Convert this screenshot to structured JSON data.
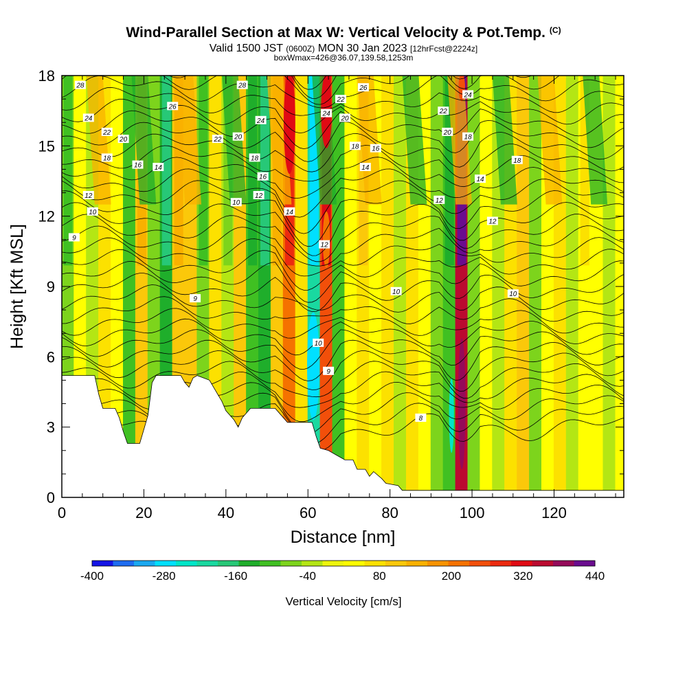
{
  "chart_data": {
    "type": "heatmap",
    "title": "Wind-Parallel Section at Max W: Vertical Velocity & Pot.Temp.",
    "title_mark": "(C)",
    "subtitle_parts": [
      "Valid 1500 JST",
      "(0600Z)",
      "MON 30 Jan 2023",
      "[12hrFcst@2224z]"
    ],
    "subtitle2": "boxWmax=426@36.07,139.58,1253m",
    "xlabel": "Distance [nm]",
    "ylabel": "Height [Kft MSL]",
    "xlim": [
      0,
      137
    ],
    "ylim": [
      0,
      18
    ],
    "x_ticks": [
      0,
      20,
      40,
      60,
      80,
      100,
      120
    ],
    "y_ticks": [
      0,
      3,
      6,
      9,
      12,
      15,
      18
    ],
    "grid": false,
    "colorbar": {
      "title": "Vertical Velocity [cm/s]",
      "tick_labels": [
        "-400",
        "-280",
        "-160",
        "-40",
        "80",
        "200",
        "320",
        "440"
      ],
      "min": -400,
      "max": 440,
      "colors": [
        "#1414e6",
        "#1e6cf0",
        "#1aa8f0",
        "#00e0ff",
        "#00e6c8",
        "#19d9a0",
        "#27c877",
        "#1fae2b",
        "#40c022",
        "#7dd41c",
        "#b4e614",
        "#eef50c",
        "#ffff00",
        "#fce100",
        "#fbc80a",
        "#f9b100",
        "#f79300",
        "#f57200",
        "#f24f0a",
        "#ec2a0f",
        "#e00a14",
        "#bb0a30",
        "#950a5a",
        "#6a0c8f"
      ]
    },
    "field_series": [
      {
        "x": 1.5,
        "w": -70
      },
      {
        "x": 4.5,
        "w": 40
      },
      {
        "x": 7.5,
        "w": -40
      },
      {
        "x": 10.5,
        "w": 60
      },
      {
        "x": 13.5,
        "w": 40
      },
      {
        "x": 16.5,
        "w": -90
      },
      {
        "x": 19.5,
        "w": 100
      },
      {
        "x": 22.5,
        "w": -60
      },
      {
        "x": 25.5,
        "w": -140
      },
      {
        "x": 28.5,
        "w": 120
      },
      {
        "x": 31.5,
        "w": 90
      },
      {
        "x": 34.5,
        "w": -70
      },
      {
        "x": 37.5,
        "w": 60
      },
      {
        "x": 40.5,
        "w": -50
      },
      {
        "x": 43.5,
        "w": 90
      },
      {
        "x": 46.5,
        "w": -120
      },
      {
        "x": 49.5,
        "w": -130
      },
      {
        "x": 52.5,
        "w": 110
      },
      {
        "x": 55.5,
        "w": 220
      },
      {
        "x": 58.5,
        "w": 60
      },
      {
        "x": 61.5,
        "w": -220
      },
      {
        "x": 64.5,
        "w": 240
      },
      {
        "x": 67.5,
        "w": -90
      },
      {
        "x": 70.5,
        "w": 40
      },
      {
        "x": 73.5,
        "w": 80
      },
      {
        "x": 76.5,
        "w": 20
      },
      {
        "x": 79.5,
        "w": 60
      },
      {
        "x": 82.5,
        "w": -30
      },
      {
        "x": 85.5,
        "w": 70
      },
      {
        "x": 88.5,
        "w": 30
      },
      {
        "x": 91.5,
        "w": -60
      },
      {
        "x": 94.5,
        "w": -120
      },
      {
        "x": 97.5,
        "w": 340
      },
      {
        "x": 100.5,
        "w": -60
      },
      {
        "x": 103.5,
        "w": 40
      },
      {
        "x": 106.5,
        "w": -40
      },
      {
        "x": 109.5,
        "w": 60
      },
      {
        "x": 112.5,
        "w": 90
      },
      {
        "x": 115.5,
        "w": -60
      },
      {
        "x": 118.5,
        "w": 40
      },
      {
        "x": 121.5,
        "w": 70
      },
      {
        "x": 124.5,
        "w": -40
      },
      {
        "x": 127.5,
        "w": 50
      },
      {
        "x": 130.5,
        "w": 20
      },
      {
        "x": 133.5,
        "w": -40
      },
      {
        "x": 136.5,
        "w": 30
      }
    ],
    "terrain": {
      "x": [
        0,
        8,
        9,
        10,
        13,
        14,
        15,
        16,
        19,
        20,
        21,
        22,
        23,
        24,
        29,
        30,
        31,
        32,
        33,
        36,
        37,
        38,
        39,
        40,
        42,
        43,
        44,
        46,
        52,
        53,
        55,
        56,
        61,
        62,
        63,
        65,
        67,
        69,
        71,
        72,
        74,
        75,
        76,
        78,
        79,
        82,
        83,
        137
      ],
      "height": [
        5.2,
        5.2,
        4.4,
        3.8,
        3.8,
        3.4,
        2.8,
        2.3,
        2.3,
        2.9,
        3.5,
        4.9,
        5.2,
        5.2,
        5.2,
        4.9,
        4.7,
        5.1,
        5.2,
        5.0,
        4.7,
        4.4,
        4.1,
        3.7,
        3.3,
        3.0,
        3.4,
        3.8,
        3.8,
        3.6,
        3.2,
        3.2,
        3.2,
        2.6,
        2.1,
        2.0,
        1.8,
        1.6,
        1.6,
        1.2,
        1.2,
        0.9,
        1.1,
        0.8,
        0.6,
        0.5,
        0.3,
        0.3
      ]
    },
    "contour_labels": [
      {
        "text": "28",
        "x": 4.5,
        "y": 17.6
      },
      {
        "text": "28",
        "x": 44,
        "y": 17.6
      },
      {
        "text": "26",
        "x": 27,
        "y": 16.7
      },
      {
        "text": "26",
        "x": 73.5,
        "y": 17.5
      },
      {
        "text": "24",
        "x": 6.5,
        "y": 16.2
      },
      {
        "text": "24",
        "x": 48.5,
        "y": 16.1
      },
      {
        "text": "24",
        "x": 64.5,
        "y": 16.4
      },
      {
        "text": "24",
        "x": 99,
        "y": 17.2
      },
      {
        "text": "22",
        "x": 11,
        "y": 15.6
      },
      {
        "text": "22",
        "x": 38,
        "y": 15.3
      },
      {
        "text": "22",
        "x": 68,
        "y": 17.0
      },
      {
        "text": "22",
        "x": 93,
        "y": 16.5
      },
      {
        "text": "20",
        "x": 15,
        "y": 15.3
      },
      {
        "text": "20",
        "x": 43,
        "y": 15.4
      },
      {
        "text": "20",
        "x": 69,
        "y": 16.2
      },
      {
        "text": "20",
        "x": 94,
        "y": 15.6
      },
      {
        "text": "18",
        "x": 11,
        "y": 14.5
      },
      {
        "text": "18",
        "x": 47,
        "y": 14.5
      },
      {
        "text": "18",
        "x": 71.5,
        "y": 15.0
      },
      {
        "text": "18",
        "x": 99,
        "y": 15.4
      },
      {
        "text": "18",
        "x": 111,
        "y": 14.4
      },
      {
        "text": "16",
        "x": 18.5,
        "y": 14.2
      },
      {
        "text": "16",
        "x": 49,
        "y": 13.7
      },
      {
        "text": "16",
        "x": 76.5,
        "y": 14.9
      },
      {
        "text": "14",
        "x": 23.5,
        "y": 14.1
      },
      {
        "text": "14",
        "x": 55.5,
        "y": 12.2
      },
      {
        "text": "14",
        "x": 74,
        "y": 14.1
      },
      {
        "text": "14",
        "x": 102,
        "y": 13.6
      },
      {
        "text": "12",
        "x": 6.5,
        "y": 12.9
      },
      {
        "text": "12",
        "x": 48,
        "y": 12.9
      },
      {
        "text": "12",
        "x": 64,
        "y": 10.8
      },
      {
        "text": "12",
        "x": 92,
        "y": 12.7
      },
      {
        "text": "12",
        "x": 105,
        "y": 11.8
      },
      {
        "text": "10",
        "x": 7.5,
        "y": 12.2
      },
      {
        "text": "10",
        "x": 42.5,
        "y": 12.6
      },
      {
        "text": "10",
        "x": 62.5,
        "y": 6.6
      },
      {
        "text": "10",
        "x": 81.5,
        "y": 8.8
      },
      {
        "text": "10",
        "x": 110,
        "y": 8.7
      },
      {
        "text": "9",
        "x": 3,
        "y": 11.1
      },
      {
        "text": "9",
        "x": 32.5,
        "y": 8.5
      },
      {
        "text": "9",
        "x": 65,
        "y": 5.4
      },
      {
        "text": "8",
        "x": 87.5,
        "y": 3.4
      }
    ]
  }
}
